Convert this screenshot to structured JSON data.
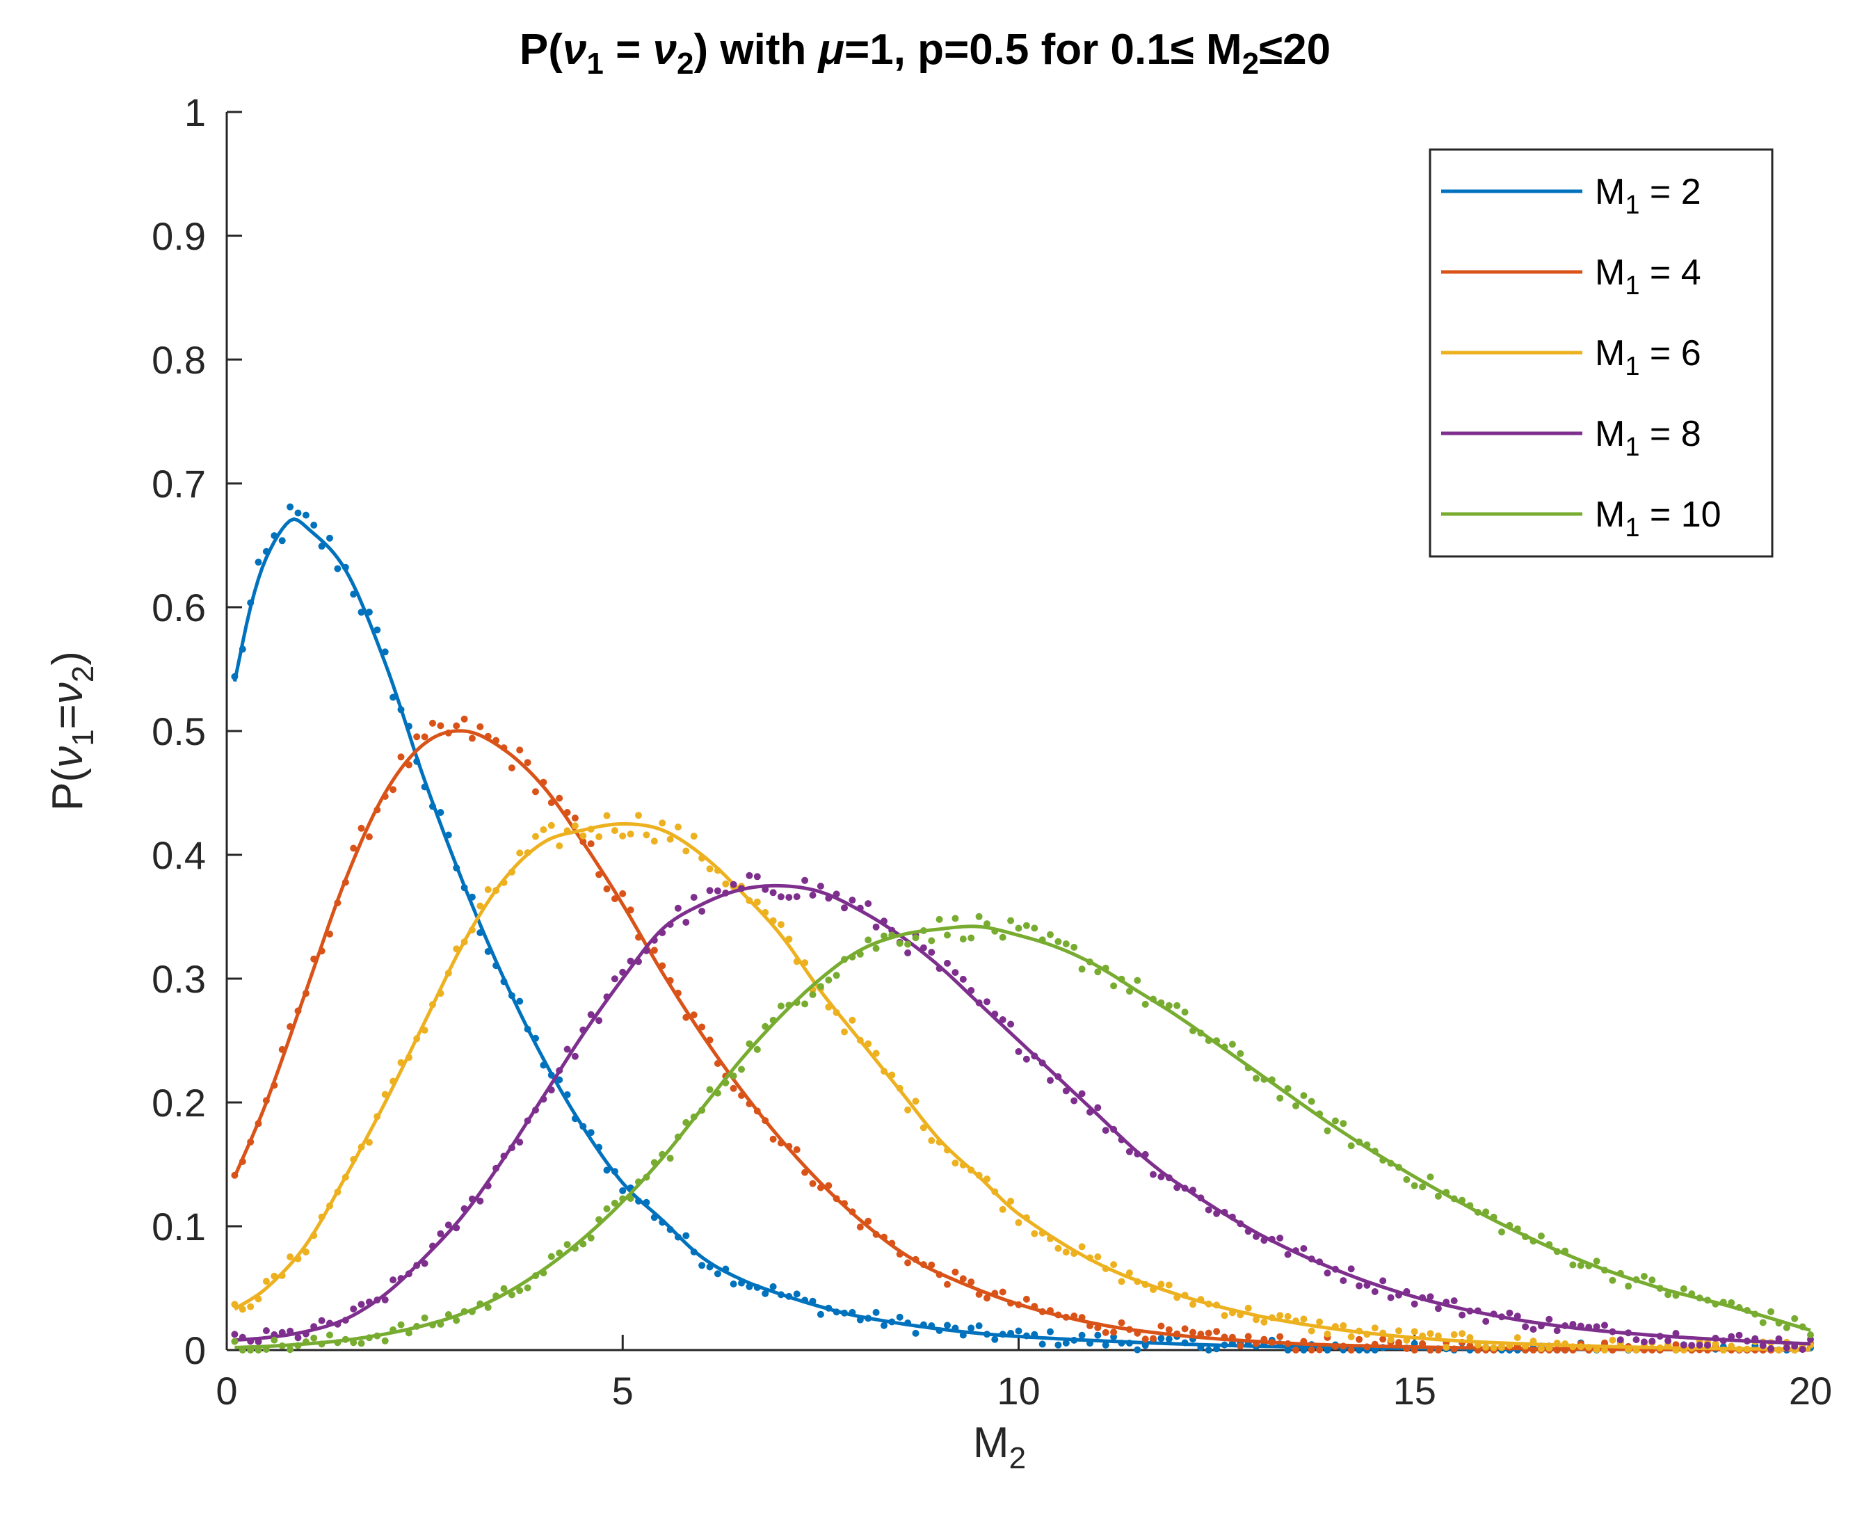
{
  "chart_data": {
    "type": "line",
    "title": {
      "prefix": "P(",
      "nu": "ν",
      "sub1": "1",
      "eq": " = ",
      "sub2": "2",
      "mid": ") with ",
      "mu": "μ",
      "suffix": "=1, p=0.5 for 0.1≤ M",
      "sub3": "2",
      "end": "≤20"
    },
    "xlabel": {
      "main": "M",
      "sub": "2"
    },
    "ylabel": {
      "prefix": "P(",
      "nu": "ν",
      "sub1": "1",
      "eq": "=",
      "sub2": "2",
      "suffix": ")"
    },
    "xlim": [
      0,
      20
    ],
    "ylim": [
      0,
      1
    ],
    "x_ticks": [
      "0",
      "5",
      "10",
      "15",
      "20"
    ],
    "x_tick_values": [
      0,
      5,
      10,
      15,
      20
    ],
    "y_ticks": [
      "0",
      "0.1",
      "0.2",
      "0.3",
      "0.4",
      "0.5",
      "0.6",
      "0.7",
      "0.8",
      "0.9",
      "1"
    ],
    "y_tick_values": [
      0,
      0.1,
      0.2,
      0.3,
      0.4,
      0.5,
      0.6,
      0.7,
      0.8,
      0.9,
      1
    ],
    "x_range": [
      0.1,
      20
    ],
    "grid": false,
    "legend_position": "top-right",
    "markers": "dots with smooth fitted line",
    "series": [
      {
        "name": "M1 = 2",
        "label_main": "M",
        "label_sub": "1",
        "label_rest": " = 2",
        "color": "#0072BD",
        "points": [
          [
            0.1,
            0.54
          ],
          [
            0.3,
            0.6
          ],
          [
            0.5,
            0.64
          ],
          [
            0.8,
            0.67
          ],
          [
            1.0,
            0.665
          ],
          [
            1.5,
            0.63
          ],
          [
            2.0,
            0.555
          ],
          [
            2.5,
            0.46
          ],
          [
            3.0,
            0.375
          ],
          [
            3.5,
            0.3
          ],
          [
            4.0,
            0.235
          ],
          [
            4.5,
            0.18
          ],
          [
            5.0,
            0.135
          ],
          [
            5.5,
            0.105
          ],
          [
            6.0,
            0.075
          ],
          [
            6.5,
            0.057
          ],
          [
            7.0,
            0.045
          ],
          [
            7.5,
            0.035
          ],
          [
            8.0,
            0.027
          ],
          [
            9.0,
            0.017
          ],
          [
            10.0,
            0.011
          ],
          [
            12.0,
            0.005
          ],
          [
            14.0,
            0.002
          ],
          [
            16.0,
            0.001
          ],
          [
            18.0,
            0.0005
          ],
          [
            20.0,
            0.0002
          ]
        ]
      },
      {
        "name": "M1 = 4",
        "label_main": "M",
        "label_sub": "1",
        "label_rest": " = 4",
        "color": "#D95319",
        "points": [
          [
            0.1,
            0.14
          ],
          [
            0.5,
            0.2
          ],
          [
            1.0,
            0.29
          ],
          [
            1.5,
            0.38
          ],
          [
            2.0,
            0.45
          ],
          [
            2.5,
            0.49
          ],
          [
            3.0,
            0.5
          ],
          [
            3.5,
            0.485
          ],
          [
            4.0,
            0.455
          ],
          [
            4.5,
            0.41
          ],
          [
            5.0,
            0.36
          ],
          [
            5.5,
            0.305
          ],
          [
            6.0,
            0.255
          ],
          [
            6.5,
            0.21
          ],
          [
            7.0,
            0.17
          ],
          [
            7.5,
            0.135
          ],
          [
            8.0,
            0.105
          ],
          [
            8.5,
            0.08
          ],
          [
            9.0,
            0.062
          ],
          [
            10.0,
            0.037
          ],
          [
            11.0,
            0.021
          ],
          [
            12.0,
            0.012
          ],
          [
            13.0,
            0.007
          ],
          [
            14.0,
            0.004
          ],
          [
            16.0,
            0.0015
          ],
          [
            18.0,
            0.0006
          ],
          [
            20.0,
            0.0002
          ]
        ]
      },
      {
        "name": "M1 = 6",
        "label_main": "M",
        "label_sub": "1",
        "label_rest": " = 6",
        "color": "#EDB120",
        "points": [
          [
            0.1,
            0.033
          ],
          [
            0.5,
            0.05
          ],
          [
            1.0,
            0.085
          ],
          [
            1.5,
            0.14
          ],
          [
            2.0,
            0.2
          ],
          [
            2.5,
            0.265
          ],
          [
            3.0,
            0.33
          ],
          [
            3.5,
            0.38
          ],
          [
            4.0,
            0.41
          ],
          [
            4.5,
            0.42
          ],
          [
            5.0,
            0.425
          ],
          [
            5.5,
            0.42
          ],
          [
            6.0,
            0.4
          ],
          [
            6.5,
            0.37
          ],
          [
            7.0,
            0.335
          ],
          [
            7.5,
            0.29
          ],
          [
            8.0,
            0.25
          ],
          [
            8.5,
            0.21
          ],
          [
            9.0,
            0.17
          ],
          [
            9.5,
            0.14
          ],
          [
            10.0,
            0.11
          ],
          [
            11.0,
            0.07
          ],
          [
            12.0,
            0.045
          ],
          [
            13.0,
            0.028
          ],
          [
            14.0,
            0.017
          ],
          [
            15.0,
            0.01
          ],
          [
            16.0,
            0.006
          ],
          [
            18.0,
            0.002
          ],
          [
            20.0,
            0.0006
          ]
        ]
      },
      {
        "name": "M1 = 8",
        "label_main": "M",
        "label_sub": "1",
        "label_rest": " = 8",
        "color": "#7E2F8E",
        "points": [
          [
            0.1,
            0.008
          ],
          [
            0.5,
            0.01
          ],
          [
            1.0,
            0.015
          ],
          [
            1.5,
            0.025
          ],
          [
            2.0,
            0.045
          ],
          [
            2.5,
            0.075
          ],
          [
            3.0,
            0.11
          ],
          [
            3.5,
            0.155
          ],
          [
            4.0,
            0.205
          ],
          [
            4.5,
            0.255
          ],
          [
            5.0,
            0.3
          ],
          [
            5.5,
            0.34
          ],
          [
            6.0,
            0.36
          ],
          [
            6.5,
            0.372
          ],
          [
            7.0,
            0.375
          ],
          [
            7.5,
            0.37
          ],
          [
            8.0,
            0.355
          ],
          [
            8.5,
            0.335
          ],
          [
            9.0,
            0.31
          ],
          [
            9.5,
            0.28
          ],
          [
            10.0,
            0.25
          ],
          [
            10.5,
            0.22
          ],
          [
            11.0,
            0.19
          ],
          [
            11.5,
            0.16
          ],
          [
            12.0,
            0.135
          ],
          [
            13.0,
            0.095
          ],
          [
            14.0,
            0.065
          ],
          [
            15.0,
            0.043
          ],
          [
            16.0,
            0.028
          ],
          [
            17.0,
            0.018
          ],
          [
            18.0,
            0.012
          ],
          [
            19.0,
            0.008
          ],
          [
            20.0,
            0.005
          ]
        ]
      },
      {
        "name": "M1 = 10",
        "label_main": "M",
        "label_sub": "1",
        "label_rest": " = 10",
        "color": "#77AC30",
        "points": [
          [
            0.1,
            0.002
          ],
          [
            0.5,
            0.003
          ],
          [
            1.0,
            0.005
          ],
          [
            1.5,
            0.008
          ],
          [
            2.0,
            0.013
          ],
          [
            2.5,
            0.02
          ],
          [
            3.0,
            0.03
          ],
          [
            3.5,
            0.045
          ],
          [
            4.0,
            0.065
          ],
          [
            4.5,
            0.09
          ],
          [
            5.0,
            0.12
          ],
          [
            5.5,
            0.155
          ],
          [
            6.0,
            0.195
          ],
          [
            6.5,
            0.235
          ],
          [
            7.0,
            0.27
          ],
          [
            7.5,
            0.3
          ],
          [
            8.0,
            0.323
          ],
          [
            8.5,
            0.335
          ],
          [
            9.0,
            0.34
          ],
          [
            9.5,
            0.342
          ],
          [
            10.0,
            0.335
          ],
          [
            10.5,
            0.325
          ],
          [
            11.0,
            0.31
          ],
          [
            11.5,
            0.29
          ],
          [
            12.0,
            0.27
          ],
          [
            13.0,
            0.225
          ],
          [
            14.0,
            0.18
          ],
          [
            15.0,
            0.14
          ],
          [
            16.0,
            0.105
          ],
          [
            17.0,
            0.075
          ],
          [
            18.0,
            0.052
          ],
          [
            19.0,
            0.035
          ],
          [
            20.0,
            0.016
          ]
        ]
      }
    ]
  }
}
